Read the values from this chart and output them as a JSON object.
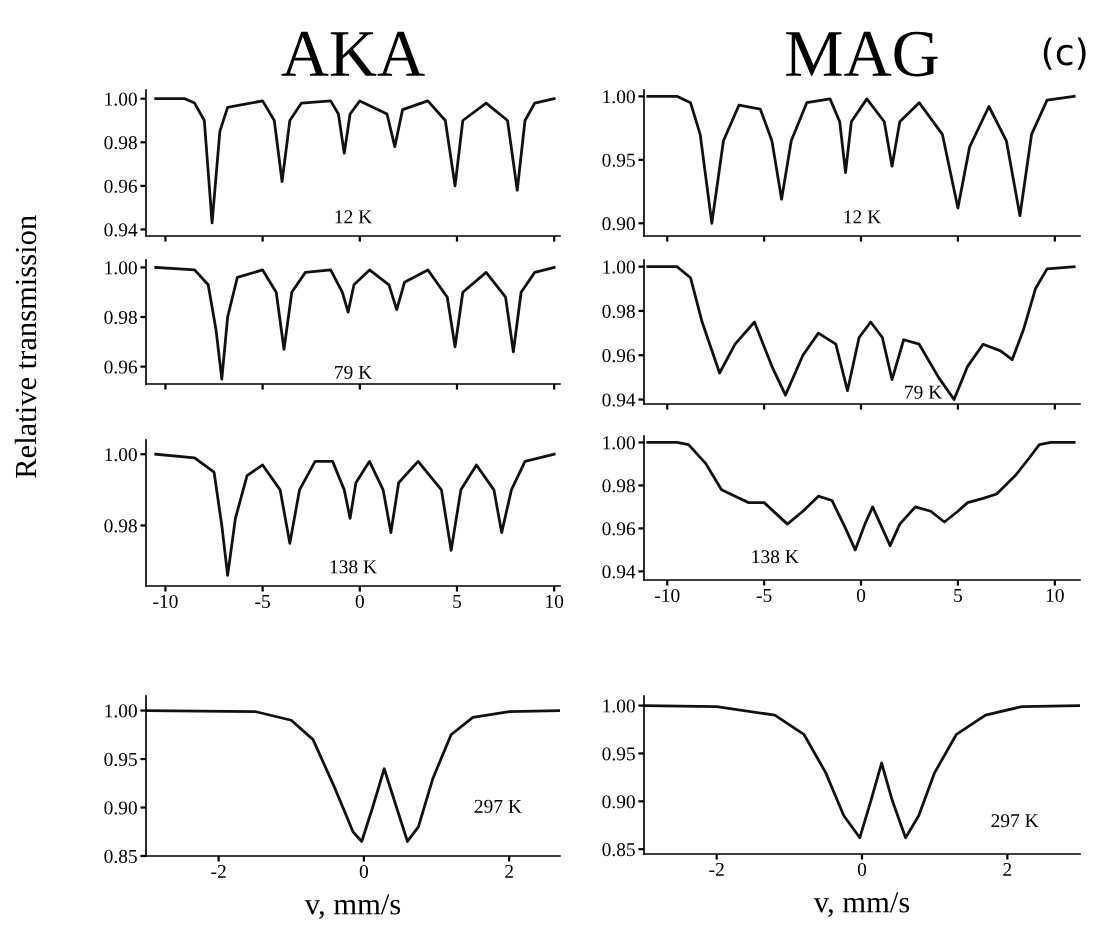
{
  "chart_data": [
    {
      "type": "line",
      "title": "AKA",
      "xlim": [
        -11,
        10.3
      ],
      "xticks": [
        -10,
        -5,
        0,
        5,
        10
      ],
      "ylim": [
        0.937,
        1.004
      ],
      "yticks": [
        {
          "value": 1.0,
          "label": "1.00"
        },
        {
          "value": 0.98,
          "label": "0.98"
        },
        {
          "value": 0.96,
          "label": "0.96"
        },
        {
          "value": 0.94,
          "label": "0.94"
        }
      ],
      "tick_labels": "y",
      "annotations": [
        "12 K"
      ],
      "series": [
        {
          "color": "#111111",
          "x": [
            -10.5,
            -9,
            -8.5,
            -8.0,
            -7.6,
            -7.2,
            -6.8,
            -5,
            -4.4,
            -4.0,
            -3.6,
            -3,
            -1.5,
            -1.1,
            -0.8,
            -0.5,
            0,
            1.4,
            1.8,
            2.2,
            3.5,
            4.4,
            4.9,
            5.3,
            6.5,
            7.6,
            8.1,
            8.5,
            9,
            10
          ],
          "values": [
            1.0,
            1.0,
            0.998,
            0.99,
            0.943,
            0.985,
            0.996,
            0.999,
            0.99,
            0.962,
            0.99,
            0.998,
            0.999,
            0.993,
            0.975,
            0.993,
            0.999,
            0.993,
            0.978,
            0.995,
            0.999,
            0.99,
            0.96,
            0.99,
            0.998,
            0.99,
            0.958,
            0.99,
            0.998,
            1.0
          ]
        }
      ]
    },
    {
      "type": "line",
      "title": "MAG",
      "xlim": [
        -11.2,
        11.3
      ],
      "xticks": [
        -10,
        -5,
        0,
        5,
        10
      ],
      "ylim": [
        0.89,
        1.005
      ],
      "yticks": [
        {
          "value": 1.0,
          "label": "1.00"
        },
        {
          "value": 0.95,
          "label": "0.95"
        },
        {
          "value": 0.9,
          "label": "0.90"
        }
      ],
      "tick_labels": "y",
      "annotations": [
        "12 K",
        "(c)"
      ],
      "series": [
        {
          "color": "#111111",
          "x": [
            -11,
            -9.5,
            -8.8,
            -8.3,
            -7.7,
            -7.1,
            -6.3,
            -5.2,
            -4.6,
            -4.1,
            -3.6,
            -2.8,
            -1.6,
            -1.1,
            -0.8,
            -0.5,
            0.3,
            1.2,
            1.6,
            2.0,
            3.0,
            4.2,
            5.0,
            5.6,
            6.6,
            7.5,
            8.2,
            8.8,
            9.6,
            11
          ],
          "values": [
            1.0,
            1.0,
            0.995,
            0.97,
            0.9,
            0.965,
            0.993,
            0.99,
            0.965,
            0.919,
            0.965,
            0.995,
            0.998,
            0.98,
            0.94,
            0.98,
            0.998,
            0.98,
            0.945,
            0.98,
            0.995,
            0.97,
            0.912,
            0.96,
            0.992,
            0.965,
            0.906,
            0.97,
            0.997,
            1.0
          ]
        }
      ]
    },
    {
      "type": "line",
      "xlim": [
        -11,
        10.3
      ],
      "xticks": [
        -10,
        -5,
        0,
        5,
        10
      ],
      "ylim": [
        0.953,
        1.003
      ],
      "yticks": [
        {
          "value": 1.0,
          "label": "1.00"
        },
        {
          "value": 0.98,
          "label": "0.98"
        },
        {
          "value": 0.96,
          "label": "0.96"
        }
      ],
      "tick_labels": "y",
      "ylabel": "Relative transmission",
      "annotations": [
        "79 K"
      ],
      "series": [
        {
          "color": "#111111",
          "x": [
            -10.5,
            -8.5,
            -7.8,
            -7.4,
            -7.1,
            -6.8,
            -6.3,
            -5,
            -4.3,
            -3.9,
            -3.5,
            -2.8,
            -1.5,
            -0.9,
            -0.6,
            -0.3,
            0.5,
            1.5,
            1.9,
            2.3,
            3.5,
            4.5,
            4.9,
            5.3,
            6.5,
            7.5,
            7.9,
            8.3,
            9,
            10
          ],
          "values": [
            1.0,
            0.999,
            0.993,
            0.975,
            0.955,
            0.98,
            0.996,
            0.999,
            0.99,
            0.967,
            0.99,
            0.998,
            0.999,
            0.99,
            0.982,
            0.993,
            0.999,
            0.993,
            0.983,
            0.994,
            0.999,
            0.988,
            0.968,
            0.99,
            0.998,
            0.988,
            0.966,
            0.99,
            0.998,
            1.0
          ]
        }
      ]
    },
    {
      "type": "line",
      "xlim": [
        -11.2,
        11.3
      ],
      "xticks": [
        -10,
        -5,
        0,
        5,
        10
      ],
      "ylim": [
        0.938,
        1.003
      ],
      "yticks": [
        {
          "value": 1.0,
          "label": "1.00"
        },
        {
          "value": 0.98,
          "label": "0.98"
        },
        {
          "value": 0.96,
          "label": "0.96"
        },
        {
          "value": 0.94,
          "label": "0.94"
        }
      ],
      "tick_labels": "y",
      "annotations": [
        "79 K"
      ],
      "series": [
        {
          "color": "#111111",
          "x": [
            -11,
            -9.5,
            -8.8,
            -8.2,
            -7.3,
            -6.5,
            -5.5,
            -4.6,
            -3.9,
            -3.0,
            -2.2,
            -1.3,
            -0.7,
            -0.1,
            0.5,
            1.1,
            1.6,
            2.2,
            3.0,
            4.0,
            4.8,
            5.5,
            6.3,
            7.2,
            7.8,
            8.4,
            9.0,
            9.6,
            11
          ],
          "values": [
            1.0,
            1.0,
            0.995,
            0.975,
            0.952,
            0.965,
            0.975,
            0.955,
            0.942,
            0.96,
            0.97,
            0.965,
            0.944,
            0.968,
            0.975,
            0.968,
            0.949,
            0.967,
            0.965,
            0.95,
            0.94,
            0.955,
            0.965,
            0.962,
            0.958,
            0.972,
            0.99,
            0.999,
            1.0
          ]
        }
      ]
    },
    {
      "type": "line",
      "xlim": [
        -11,
        10.3
      ],
      "ylim": [
        0.963,
        1.004
      ],
      "xticks": [
        -10,
        -5,
        0,
        5,
        10
      ],
      "yticks": [
        {
          "value": 1.0,
          "label": "1.00"
        },
        {
          "value": 0.98,
          "label": "0.98"
        }
      ],
      "annotations": [
        "138 K"
      ],
      "series": [
        {
          "color": "#111111",
          "x": [
            -10.5,
            -8.5,
            -7.5,
            -7.1,
            -6.8,
            -6.4,
            -5.8,
            -5,
            -4.1,
            -3.6,
            -3.1,
            -2.3,
            -1.4,
            -0.8,
            -0.5,
            -0.2,
            0.5,
            1.2,
            1.6,
            2.0,
            3.0,
            4.2,
            4.7,
            5.2,
            6.0,
            6.9,
            7.3,
            7.8,
            8.5,
            10
          ],
          "values": [
            1.0,
            0.999,
            0.995,
            0.98,
            0.966,
            0.982,
            0.994,
            0.997,
            0.99,
            0.975,
            0.99,
            0.998,
            0.998,
            0.99,
            0.982,
            0.992,
            0.998,
            0.99,
            0.978,
            0.992,
            0.998,
            0.99,
            0.973,
            0.99,
            0.997,
            0.99,
            0.978,
            0.99,
            0.998,
            1.0
          ]
        }
      ]
    },
    {
      "type": "line",
      "xlim": [
        -11.2,
        11.3
      ],
      "ylim": [
        0.936,
        1.003
      ],
      "xticks": [
        -10,
        -5,
        0,
        5,
        10
      ],
      "yticks": [
        {
          "value": 1.0,
          "label": "1.00"
        },
        {
          "value": 0.98,
          "label": "0.98"
        },
        {
          "value": 0.96,
          "label": "0.96"
        },
        {
          "value": 0.94,
          "label": "0.94"
        }
      ],
      "annotations": [
        "138 K"
      ],
      "series": [
        {
          "color": "#111111",
          "x": [
            -11,
            -9.5,
            -8.9,
            -8.0,
            -7.2,
            -6.5,
            -5.8,
            -5.0,
            -4.4,
            -3.8,
            -3.0,
            -2.2,
            -1.5,
            -0.8,
            -0.3,
            0.2,
            0.6,
            1.0,
            1.5,
            2.0,
            2.8,
            3.6,
            4.3,
            5.0,
            5.5,
            6.3,
            7.0,
            8.0,
            8.7,
            9.2,
            9.8,
            11
          ],
          "values": [
            1.0,
            1.0,
            0.999,
            0.99,
            0.978,
            0.975,
            0.972,
            0.972,
            0.967,
            0.962,
            0.968,
            0.975,
            0.973,
            0.96,
            0.95,
            0.962,
            0.97,
            0.962,
            0.952,
            0.962,
            0.97,
            0.968,
            0.963,
            0.968,
            0.972,
            0.974,
            0.976,
            0.985,
            0.993,
            0.999,
            1.0,
            1.0
          ]
        }
      ]
    },
    {
      "type": "line",
      "xlim": [
        -3,
        2.7
      ],
      "ylim": [
        0.85,
        1.015
      ],
      "xticks": [
        -2,
        0,
        2
      ],
      "yticks": [
        {
          "value": 1.0,
          "label": "1.00"
        },
        {
          "value": 0.95,
          "label": "0.95"
        },
        {
          "value": 0.9,
          "label": "0.90"
        },
        {
          "value": 0.85,
          "label": "0.85"
        }
      ],
      "xlabel": "v, mm/s",
      "annotations": [
        "297 K"
      ],
      "series": [
        {
          "color": "#111111",
          "x": [
            -3,
            -1.5,
            -1.0,
            -0.7,
            -0.4,
            -0.15,
            -0.03,
            0.12,
            0.28,
            0.45,
            0.6,
            0.75,
            0.95,
            1.2,
            1.5,
            2.0,
            2.7
          ],
          "values": [
            1.0,
            0.999,
            0.99,
            0.97,
            0.92,
            0.875,
            0.865,
            0.9,
            0.94,
            0.9,
            0.865,
            0.88,
            0.93,
            0.975,
            0.993,
            0.999,
            1.0
          ]
        }
      ]
    },
    {
      "type": "line",
      "xlim": [
        -3,
        3
      ],
      "ylim": [
        0.845,
        1.01
      ],
      "xticks": [
        -2,
        0,
        2
      ],
      "yticks": [
        {
          "value": 1.0,
          "label": "1.00"
        },
        {
          "value": 0.95,
          "label": "0.95"
        },
        {
          "value": 0.9,
          "label": "0.90"
        },
        {
          "value": 0.85,
          "label": "0.85"
        }
      ],
      "xlabel": "v, mm/s",
      "annotations": [
        "297 K"
      ],
      "series": [
        {
          "color": "#111111",
          "x": [
            -3,
            -2,
            -1.2,
            -0.8,
            -0.5,
            -0.25,
            -0.03,
            0.12,
            0.27,
            0.42,
            0.6,
            0.78,
            1.0,
            1.3,
            1.7,
            2.2,
            3
          ],
          "values": [
            1.0,
            0.999,
            0.99,
            0.97,
            0.93,
            0.885,
            0.862,
            0.9,
            0.94,
            0.9,
            0.862,
            0.885,
            0.93,
            0.97,
            0.99,
            0.999,
            1.0
          ]
        }
      ]
    }
  ]
}
